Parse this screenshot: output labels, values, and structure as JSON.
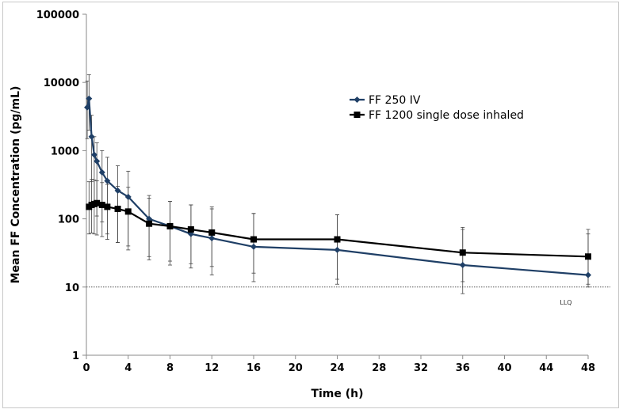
{
  "chart_data": {
    "type": "line",
    "title": "",
    "xlabel": "Time (h)",
    "ylabel": "Mean FF Concentration (pg/mL)",
    "y_scale": "log",
    "xlim": [
      0,
      48
    ],
    "ylim": [
      1,
      100000
    ],
    "x_ticks": [
      0,
      4,
      8,
      12,
      16,
      20,
      24,
      28,
      32,
      36,
      40,
      44,
      48
    ],
    "y_ticks": [
      1,
      10,
      100,
      1000,
      10000,
      100000
    ],
    "x_tick_labels": [
      "0",
      "4",
      "8",
      "12",
      "16",
      "20",
      "24",
      "28",
      "32",
      "36",
      "40",
      "44",
      "48"
    ],
    "y_tick_labels": [
      "1",
      "10",
      "100",
      "1000",
      "10000",
      "100000"
    ],
    "grid": false,
    "legend_position": "top-right",
    "reference_line": {
      "y": 10,
      "label": "LLQ"
    },
    "series": [
      {
        "name": "FF 250 IV",
        "color": "#1f3f66",
        "marker": "diamond",
        "x": [
          0.08,
          0.25,
          0.5,
          0.75,
          1,
          1.5,
          2,
          3,
          4,
          6,
          8,
          10,
          12,
          16,
          24,
          36,
          48
        ],
        "y": [
          4300,
          5800,
          1600,
          870,
          700,
          480,
          360,
          260,
          210,
          100,
          78,
          60,
          52,
          39,
          35,
          21,
          15
        ],
        "err_low": [
          1500,
          2000,
          350,
          160,
          110,
          90,
          60,
          45,
          35,
          25,
          21,
          19,
          15,
          12,
          11,
          8,
          10
        ],
        "err_high": [
          10500,
          13000,
          3300,
          1600,
          1300,
          1000,
          800,
          600,
          500,
          220,
          180,
          160,
          140,
          120,
          115,
          75,
          70
        ]
      },
      {
        "name": "FF 1200 single dose inhaled",
        "color": "#000000",
        "marker": "square",
        "x": [
          0.25,
          0.5,
          0.75,
          1,
          1.5,
          2,
          3,
          4,
          6,
          8,
          10,
          12,
          16,
          24,
          36,
          48
        ],
        "y": [
          150,
          160,
          165,
          170,
          160,
          150,
          140,
          128,
          85,
          78,
          70,
          63,
          50,
          50,
          32,
          28
        ],
        "err_low": [
          60,
          62,
          60,
          58,
          55,
          50,
          45,
          40,
          28,
          24,
          22,
          20,
          16,
          13,
          12,
          11
        ],
        "err_high": [
          350,
          380,
          370,
          360,
          340,
          320,
          300,
          290,
          200,
          180,
          160,
          150,
          120,
          115,
          70,
          60
        ]
      }
    ]
  }
}
